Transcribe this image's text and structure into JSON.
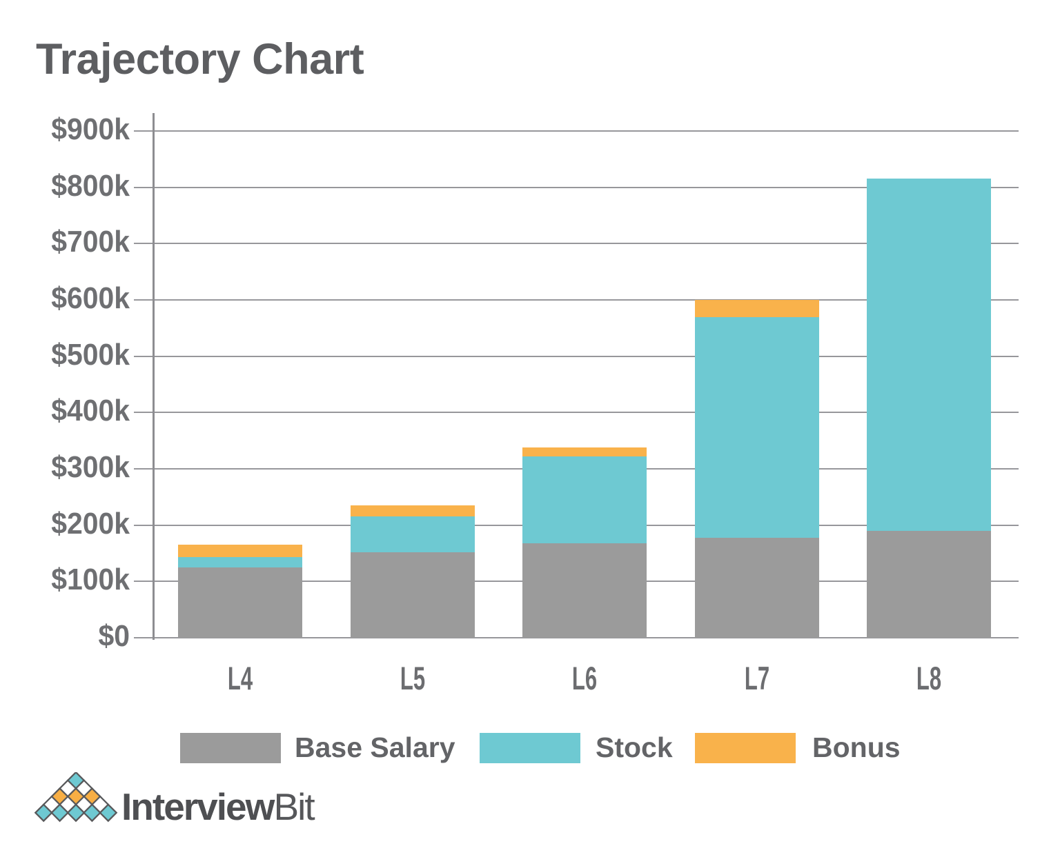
{
  "header": {
    "title": "Trajectory Chart"
  },
  "chart_data": {
    "type": "bar",
    "subtype": "stacked-vertical",
    "title": "Trajectory Chart",
    "xlabel": "",
    "ylabel": "",
    "unit": "USD (thousands)",
    "categories": [
      "L4",
      "L5",
      "L6",
      "L7",
      "L8"
    ],
    "series": [
      {
        "name": "Base Salary",
        "color": "#9b9b9b",
        "values": [
          125,
          152,
          168,
          177,
          190
        ]
      },
      {
        "name": "Stock",
        "color": "#6ec9d2",
        "values": [
          18,
          63,
          154,
          393,
          626
        ]
      },
      {
        "name": "Bonus",
        "color": "#f9b24b",
        "values": [
          22,
          20,
          16,
          30,
          0
        ]
      }
    ],
    "stack_totals": [
      165,
      235,
      338,
      600,
      816
    ],
    "y_ticks": [
      "$0",
      "$100k",
      "$200k",
      "$300k",
      "$400k",
      "$500k",
      "$600k",
      "$700k",
      "$800k",
      "$900k"
    ],
    "ylim": [
      0,
      900
    ],
    "grid": true,
    "gridline_color": "#97979b",
    "legend_position": "bottom"
  },
  "legend": {
    "items": [
      {
        "label": "Base Salary",
        "color": "#9b9b9b"
      },
      {
        "label": "Stock",
        "color": "#6ec9d2"
      },
      {
        "label": "Bonus",
        "color": "#f9b24b"
      }
    ]
  },
  "logo": {
    "text_primary": "Interview",
    "text_secondary": "Bit",
    "pyramid_rows": [
      "T",
      "WW",
      "OOO",
      "WWWW",
      "TTTTT"
    ],
    "tile_colors": {
      "T": "#6ec9d2",
      "O": "#f7ae44",
      "W": "#ffffff"
    },
    "outline_color": "#58595b"
  }
}
